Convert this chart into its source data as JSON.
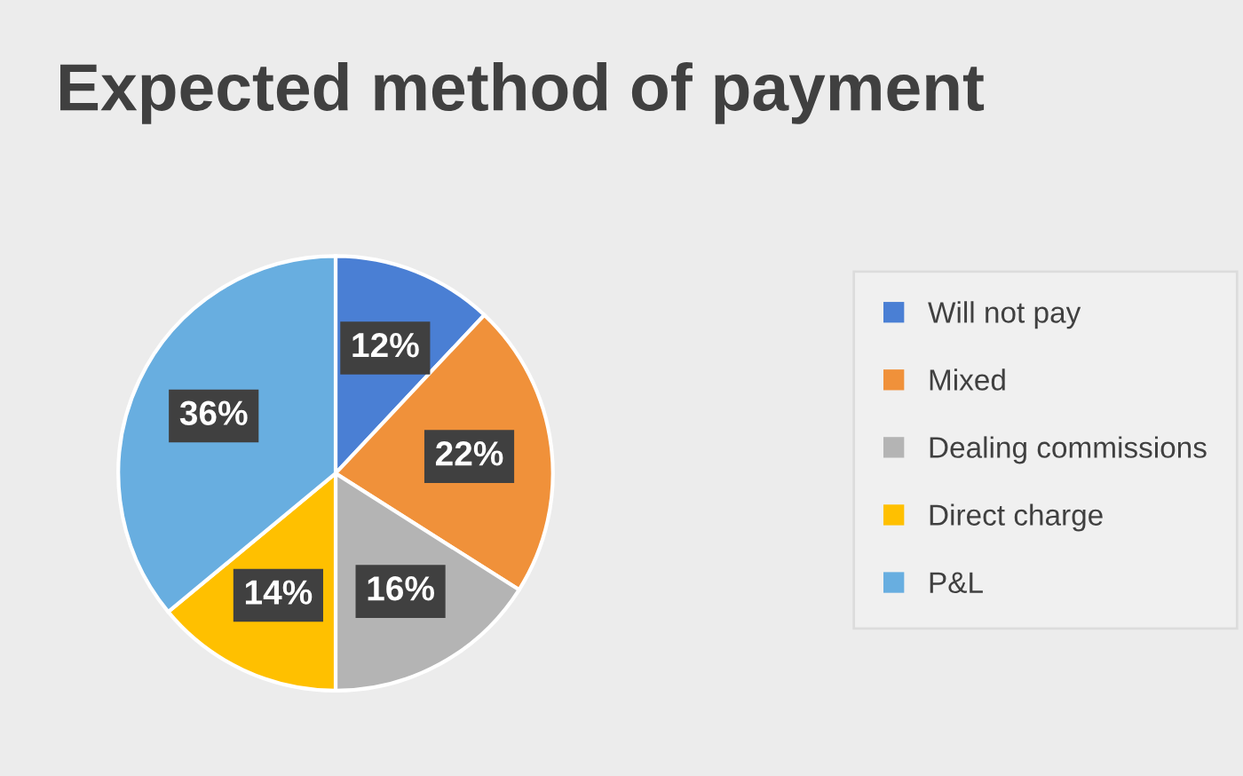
{
  "chart_data": {
    "type": "pie",
    "title": "Expected method of payment",
    "categories": [
      "Will not pay",
      "Mixed",
      "Dealing commissions",
      "Direct charge",
      "P&L"
    ],
    "values": [
      12,
      22,
      16,
      14,
      36
    ],
    "colors": [
      "#4a7fd4",
      "#f0913a",
      "#b4b4b4",
      "#ffc000",
      "#68aee0"
    ],
    "value_labels": [
      "12%",
      "22%",
      "16%",
      "14%",
      "36%"
    ],
    "legend": "right"
  }
}
